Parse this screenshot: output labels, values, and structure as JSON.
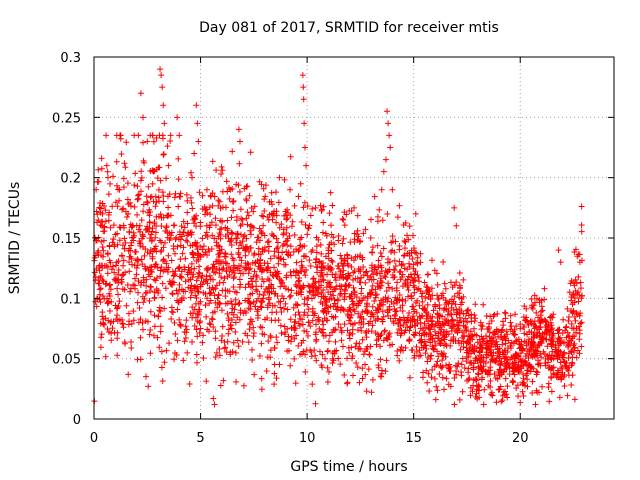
{
  "chart_data": {
    "type": "scatter",
    "title": "Day 081 of 2017, SRMTID for receiver mtis",
    "xlabel": "GPS time / hours",
    "ylabel": "SRMTID / TECUs",
    "xlim": [
      0,
      24.4
    ],
    "ylim": [
      0,
      0.3
    ],
    "xticks": [
      0,
      5,
      10,
      15,
      20
    ],
    "xtick_labels": [
      "0",
      "5",
      "10",
      "15",
      "20"
    ],
    "yticks": [
      0,
      0.05,
      0.1,
      0.15,
      0.2,
      0.25,
      0.3
    ],
    "ytick_labels": [
      "0",
      "0.05",
      "0.1",
      "0.15",
      "0.2",
      "0.25",
      "0.3"
    ],
    "grid": true,
    "marker": "plus",
    "color": "#ff0000",
    "series": [
      {
        "name": "SRMTID",
        "trend": [
          [
            0.0,
            0.13
          ],
          [
            1.0,
            0.14
          ],
          [
            2.0,
            0.135
          ],
          [
            3.0,
            0.14
          ],
          [
            4.0,
            0.12
          ],
          [
            5.0,
            0.12
          ],
          [
            6.0,
            0.12
          ],
          [
            7.0,
            0.125
          ],
          [
            8.0,
            0.115
          ],
          [
            9.0,
            0.12
          ],
          [
            10.0,
            0.11
          ],
          [
            11.0,
            0.105
          ],
          [
            12.0,
            0.1
          ],
          [
            13.0,
            0.1
          ],
          [
            14.0,
            0.1
          ],
          [
            15.0,
            0.09
          ],
          [
            15.5,
            0.075
          ],
          [
            16.0,
            0.075
          ],
          [
            16.5,
            0.07
          ],
          [
            17.0,
            0.08
          ],
          [
            17.5,
            0.065
          ],
          [
            18.0,
            0.05
          ],
          [
            19.0,
            0.05
          ],
          [
            20.0,
            0.05
          ],
          [
            20.5,
            0.055
          ],
          [
            21.0,
            0.07
          ],
          [
            21.5,
            0.055
          ],
          [
            22.0,
            0.05
          ],
          [
            22.5,
            0.075
          ],
          [
            22.9,
            0.1
          ]
        ],
        "spread_rel": 0.32,
        "points_per_hour": 140,
        "x_start": 0.0,
        "x_end": 22.9,
        "peaks": [
          [
            0.1,
            0.19
          ],
          [
            0.4,
            0.17
          ],
          [
            0.6,
            0.21
          ],
          [
            1.2,
            0.19
          ],
          [
            1.6,
            0.17
          ],
          [
            2.2,
            0.27
          ],
          [
            2.3,
            0.25
          ],
          [
            2.5,
            0.23
          ],
          [
            2.8,
            0.205
          ],
          [
            3.1,
            0.29
          ],
          [
            3.15,
            0.285
          ],
          [
            3.2,
            0.275
          ],
          [
            3.25,
            0.26
          ],
          [
            3.3,
            0.245
          ],
          [
            3.5,
            0.21
          ],
          [
            3.9,
            0.25
          ],
          [
            4.0,
            0.235
          ],
          [
            4.6,
            0.2
          ],
          [
            4.7,
            0.22
          ],
          [
            4.8,
            0.26
          ],
          [
            4.85,
            0.245
          ],
          [
            4.9,
            0.23
          ],
          [
            5.3,
            0.19
          ],
          [
            5.9,
            0.18
          ],
          [
            6.4,
            0.19
          ],
          [
            6.8,
            0.24
          ],
          [
            6.85,
            0.23
          ],
          [
            7.3,
            0.185
          ],
          [
            8.2,
            0.165
          ],
          [
            8.7,
            0.2
          ],
          [
            9.2,
            0.19
          ],
          [
            9.7,
            0.195
          ],
          [
            9.8,
            0.285
          ],
          [
            9.82,
            0.275
          ],
          [
            9.84,
            0.265
          ],
          [
            9.86,
            0.245
          ],
          [
            9.9,
            0.225
          ],
          [
            9.95,
            0.21
          ],
          [
            10.4,
            0.175
          ],
          [
            11.7,
            0.165
          ],
          [
            12.2,
            0.175
          ],
          [
            13.5,
            0.19
          ],
          [
            13.6,
            0.205
          ],
          [
            13.7,
            0.215
          ],
          [
            13.75,
            0.255
          ],
          [
            13.8,
            0.245
          ],
          [
            13.85,
            0.235
          ],
          [
            13.9,
            0.225
          ],
          [
            14.0,
            0.19
          ],
          [
            15.1,
            0.17
          ],
          [
            16.9,
            0.175
          ],
          [
            17.0,
            0.16
          ],
          [
            21.8,
            0.14
          ],
          [
            21.9,
            0.13
          ],
          [
            22.8,
            0.13
          ]
        ]
      }
    ]
  }
}
